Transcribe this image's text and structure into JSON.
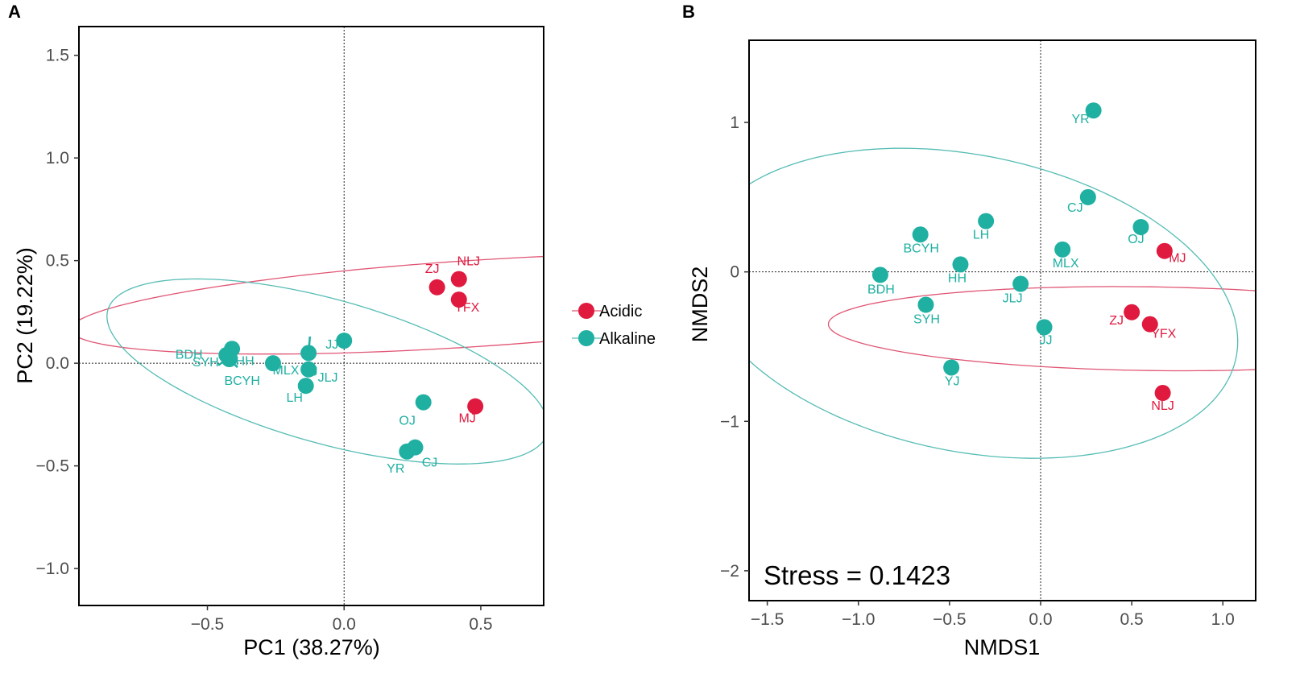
{
  "colors": {
    "Acidic": "#e0193f",
    "Alkaline": "#1fb0a2",
    "ellipse_Acidic": "#e05573",
    "ellipse_Alkaline": "#55bcb4"
  },
  "legend": {
    "placement": "between panels, center-right of panel A",
    "entries": [
      {
        "name": "Acidic"
      },
      {
        "name": "Alkaline"
      }
    ]
  },
  "chart_data": [
    {
      "type": "scatter",
      "panel_label": "A",
      "xlabel": "PC1 (38.27%)",
      "ylabel": "PC2 (19.22%)",
      "xlim": [
        -0.97,
        0.73
      ],
      "ylim": [
        -1.18,
        1.64
      ],
      "xticks": [
        {
          "value": -0.5,
          "label": "−0.5"
        },
        {
          "value": 0.0,
          "label": "0.0"
        },
        {
          "value": 0.5,
          "label": "0.5"
        }
      ],
      "yticks": [
        {
          "value": -1.0,
          "label": "−1.0"
        },
        {
          "value": -0.5,
          "label": "−0.5"
        },
        {
          "value": 0.0,
          "label": "0.0"
        },
        {
          "value": 0.5,
          "label": "0.5"
        },
        {
          "value": 1.0,
          "label": "1.0"
        },
        {
          "value": 1.5,
          "label": "1.5"
        }
      ],
      "reference_lines": {
        "x": 0,
        "y": 0
      },
      "series": [
        {
          "name": "Acidic",
          "points": [
            {
              "label": "ZJ",
              "x": 0.34,
              "y": 0.37,
              "label_pos": "left"
            },
            {
              "label": "NLJ",
              "x": 0.42,
              "y": 0.41,
              "label_pos": "above"
            },
            {
              "label": "YFX",
              "x": 0.42,
              "y": 0.31,
              "label_pos": "below"
            },
            {
              "label": "MJ",
              "x": 0.48,
              "y": -0.21,
              "label_pos": "below-left"
            }
          ]
        },
        {
          "name": "Alkaline",
          "points": [
            {
              "label": "SYH",
              "x": -0.43,
              "y": 0.04,
              "label_pos": "upper-left"
            },
            {
              "label": "HH",
              "x": -0.41,
              "y": 0.07,
              "label_pos": "upper-right"
            },
            {
              "label": "BDH",
              "x": -0.42,
              "y": 0.03,
              "label_pos": "lower-left"
            },
            {
              "label": "BCYH",
              "x": -0.42,
              "y": 0.02,
              "label_pos": "below"
            },
            {
              "label": "MLX",
              "x": -0.26,
              "y": 0.0,
              "label_pos": "upper-right"
            },
            {
              "label": "YJ",
              "x": -0.13,
              "y": 0.05,
              "label_pos": "above"
            },
            {
              "label": "JJ",
              "x": 0.0,
              "y": 0.11,
              "label_pos": "lower-left"
            },
            {
              "label": "JLJ",
              "x": -0.13,
              "y": -0.03,
              "label_pos": "lower-right"
            },
            {
              "label": "LH",
              "x": -0.14,
              "y": -0.11,
              "label_pos": "below-left"
            },
            {
              "label": "OJ",
              "x": 0.29,
              "y": -0.19,
              "label_pos": "below-left"
            },
            {
              "label": "CJ",
              "x": 0.26,
              "y": -0.41,
              "label_pos": "upper-right"
            },
            {
              "label": "YR",
              "x": 0.23,
              "y": -0.43,
              "label_pos": "below-left"
            }
          ]
        }
      ],
      "ellipses": [
        {
          "group": "Acidic",
          "center": [
            0.465,
            0.29
          ],
          "radii": [
            0.21,
            1.47
          ],
          "angle_deg": -85
        },
        {
          "group": "Alkaline",
          "center": [
            -0.06,
            -0.04
          ],
          "radii": [
            0.86,
            0.34
          ],
          "angle_deg": -22
        }
      ]
    },
    {
      "type": "scatter",
      "panel_label": "B",
      "xlabel": "NMDS1",
      "ylabel": "NMDS2",
      "xlim": [
        -1.6,
        1.18
      ],
      "ylim": [
        -2.2,
        1.55
      ],
      "xticks": [
        {
          "value": -1.5,
          "label": "−1.5"
        },
        {
          "value": -1.0,
          "label": "−1.0"
        },
        {
          "value": -0.5,
          "label": "−0.5"
        },
        {
          "value": 0.0,
          "label": "0.0"
        },
        {
          "value": 0.5,
          "label": "0.5"
        },
        {
          "value": 1.0,
          "label": "1.0"
        }
      ],
      "yticks": [
        {
          "value": -2,
          "label": "−2"
        },
        {
          "value": -1,
          "label": "−1"
        },
        {
          "value": 0,
          "label": "0"
        },
        {
          "value": 1,
          "label": "1"
        }
      ],
      "reference_lines": {
        "x": 0,
        "y": 0
      },
      "annotation": "Stress = 0.1423",
      "series": [
        {
          "name": "Acidic",
          "points": [
            {
              "label": "MJ",
              "x": 0.68,
              "y": 0.14,
              "label_pos": "lower-right"
            },
            {
              "label": "ZJ",
              "x": 0.5,
              "y": -0.27,
              "label_pos": "lower-left"
            },
            {
              "label": "YFX",
              "x": 0.6,
              "y": -0.35,
              "label_pos": "lower-right"
            },
            {
              "label": "NLJ",
              "x": 0.67,
              "y": -0.81,
              "label_pos": "below"
            }
          ]
        },
        {
          "name": "Alkaline",
          "points": [
            {
              "label": "YR",
              "x": 0.29,
              "y": 1.08,
              "label_pos": "lower-left"
            },
            {
              "label": "CJ",
              "x": 0.26,
              "y": 0.5,
              "label_pos": "lower-left"
            },
            {
              "label": "OJ",
              "x": 0.55,
              "y": 0.3,
              "label_pos": "below"
            },
            {
              "label": "MLX",
              "x": 0.12,
              "y": 0.15,
              "label_pos": "below"
            },
            {
              "label": "LH",
              "x": -0.3,
              "y": 0.34,
              "label_pos": "below"
            },
            {
              "label": "BCYH",
              "x": -0.66,
              "y": 0.25,
              "label_pos": "below"
            },
            {
              "label": "HH",
              "x": -0.44,
              "y": 0.05,
              "label_pos": "below"
            },
            {
              "label": "BDH",
              "x": -0.88,
              "y": -0.02,
              "label_pos": "below"
            },
            {
              "label": "JLJ",
              "x": -0.11,
              "y": -0.08,
              "label_pos": "below"
            },
            {
              "label": "SYH",
              "x": -0.63,
              "y": -0.22,
              "label_pos": "below"
            },
            {
              "label": "JJ",
              "x": 0.02,
              "y": -0.37,
              "label_pos": "below"
            },
            {
              "label": "YJ",
              "x": -0.49,
              "y": -0.64,
              "label_pos": "below"
            }
          ]
        }
      ],
      "ellipses": [
        {
          "group": "Acidic",
          "center": [
            0.595,
            -0.38
          ],
          "radii": [
            0.28,
            1.76
          ],
          "angle_deg": -91
        },
        {
          "group": "Alkaline",
          "center": [
            -0.4,
            -0.21
          ],
          "radii": [
            1.52,
            0.98
          ],
          "angle_deg": -17
        }
      ]
    }
  ]
}
